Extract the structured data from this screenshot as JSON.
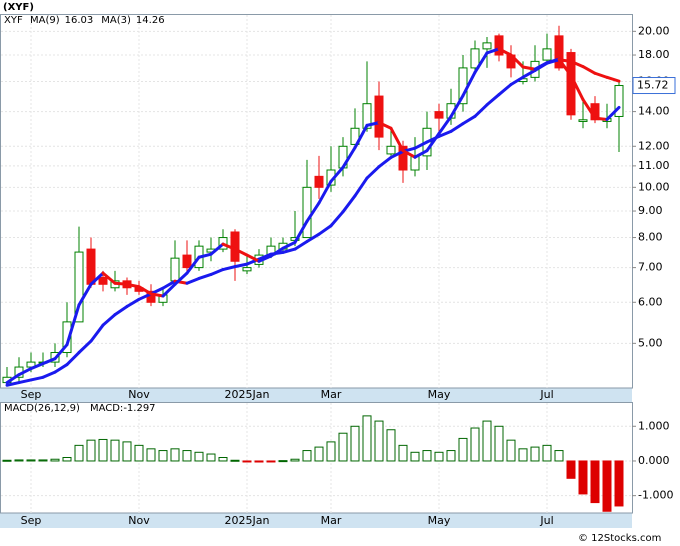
{
  "chart_data": [
    {
      "type": "candlestick",
      "title": "(XYF)",
      "name": "XYF",
      "name_color": "#008000",
      "categories": [
        null,
        null,
        "Sep",
        null,
        null,
        null,
        null,
        null,
        null,
        null,
        null,
        "Nov",
        null,
        null,
        null,
        null,
        null,
        null,
        null,
        null,
        "2025Jan",
        null,
        null,
        null,
        null,
        null,
        null,
        "Mar",
        null,
        null,
        null,
        null,
        null,
        null,
        null,
        null,
        "May",
        null,
        null,
        null,
        null,
        null,
        null,
        null,
        null,
        "Jul",
        null,
        null,
        null,
        null,
        null,
        null
      ],
      "open": [
        4.2,
        4.3,
        4.5,
        4.6,
        4.6,
        4.8,
        5.5,
        7.6,
        6.7,
        6.4,
        6.6,
        6.4,
        6.3,
        6.0,
        6.6,
        7.4,
        7.0,
        7.5,
        7.6,
        8.2,
        6.9,
        7.1,
        7.4,
        7.6,
        7.9,
        8.0,
        10.5,
        10.1,
        10.9,
        12.1,
        13.0,
        15.0,
        11.6,
        12.0,
        10.8,
        11.5,
        14.0,
        13.6,
        14.5,
        17.0,
        18.5,
        19.6,
        18.0,
        16.0,
        16.3,
        17.6,
        19.6,
        18.2,
        13.4,
        14.5,
        13.4,
        13.7
      ],
      "high": [
        4.5,
        4.7,
        4.8,
        4.8,
        5.0,
        6.0,
        8.4,
        8.0,
        6.9,
        6.9,
        6.7,
        6.6,
        6.5,
        6.4,
        7.9,
        7.9,
        7.9,
        8.0,
        8.3,
        8.3,
        7.4,
        7.6,
        8.0,
        8.0,
        9.0,
        11.3,
        11.5,
        12.0,
        12.5,
        14.2,
        17.5,
        16.0,
        13.0,
        12.3,
        12.5,
        14.0,
        14.5,
        15.5,
        18.0,
        19.2,
        19.5,
        19.8,
        18.8,
        17.5,
        18.8,
        19.8,
        20.5,
        18.5,
        14.8,
        15.0,
        14.5,
        16.0
      ],
      "low": [
        4.15,
        4.2,
        4.4,
        4.5,
        4.5,
        4.7,
        5.5,
        6.4,
        6.3,
        6.3,
        6.2,
        6.2,
        5.9,
        5.9,
        6.5,
        6.8,
        6.9,
        7.2,
        7.5,
        6.6,
        6.8,
        7.0,
        7.3,
        7.5,
        7.7,
        8.0,
        9.5,
        9.8,
        10.5,
        11.8,
        12.8,
        11.8,
        11.5,
        10.2,
        10.5,
        10.8,
        12.5,
        13.2,
        14.0,
        16.5,
        17.0,
        17.5,
        16.3,
        15.8,
        16.0,
        17.3,
        16.8,
        13.5,
        13.0,
        13.3,
        13.0,
        11.7
      ],
      "close": [
        4.3,
        4.5,
        4.6,
        4.6,
        4.8,
        5.5,
        7.5,
        6.5,
        6.5,
        6.6,
        6.4,
        6.3,
        6.0,
        6.2,
        7.3,
        7.0,
        7.7,
        7.6,
        8.0,
        7.2,
        7.0,
        7.4,
        7.7,
        7.8,
        8.0,
        10.0,
        10.0,
        10.8,
        12.0,
        13.0,
        14.5,
        12.5,
        12.0,
        10.8,
        11.5,
        13.0,
        13.6,
        14.5,
        17.0,
        18.5,
        19.0,
        18.0,
        17.0,
        16.2,
        17.5,
        18.5,
        17.0,
        13.8,
        13.5,
        13.5,
        13.57,
        15.72
      ],
      "up_color": "#008000",
      "down_color": "#ee1111",
      "series": [
        {
          "name": "MA(9)",
          "color": "#1a1aee",
          "values": [
            4.15,
            4.2,
            4.25,
            4.3,
            4.4,
            4.55,
            4.8,
            5.05,
            5.42,
            5.68,
            5.89,
            6.08,
            6.23,
            6.39,
            6.59,
            6.53,
            6.67,
            6.79,
            6.94,
            7.03,
            7.11,
            7.27,
            7.43,
            7.49,
            7.6,
            7.86,
            8.12,
            8.43,
            8.97,
            9.63,
            10.42,
            10.96,
            11.42,
            11.73,
            11.9,
            12.23,
            12.54,
            12.82,
            13.27,
            13.71,
            14.43,
            15.1,
            15.79,
            16.31,
            16.81,
            17.36,
            17.63,
            17.5,
            17.1,
            16.6,
            16.3,
            16.03
          ]
        },
        {
          "name": "MA(3)",
          "color": "#1a1aee",
          "values": [
            4.2,
            4.35,
            4.47,
            4.57,
            4.67,
            4.97,
            5.93,
            6.5,
            6.83,
            6.53,
            6.5,
            6.43,
            6.23,
            6.17,
            6.5,
            6.83,
            7.33,
            7.43,
            7.77,
            7.6,
            7.4,
            7.2,
            7.37,
            7.63,
            7.83,
            8.6,
            9.33,
            10.27,
            10.93,
            11.93,
            13.17,
            13.33,
            13.0,
            11.77,
            11.43,
            11.77,
            12.7,
            13.7,
            15.03,
            16.67,
            18.17,
            18.5,
            18.0,
            17.07,
            16.9,
            17.4,
            17.67,
            16.43,
            14.77,
            13.6,
            13.52,
            14.26
          ]
        }
      ],
      "falling_color": "#ee1111",
      "log_scale": true,
      "grid": true,
      "ylim": [
        4.1,
        21.6
      ],
      "yticks": [
        {
          "value": 5,
          "label": "5.00"
        },
        {
          "value": 6,
          "label": "6.00"
        },
        {
          "value": 7,
          "label": "7.00"
        },
        {
          "value": 8,
          "label": "8.00"
        },
        {
          "value": 9,
          "label": "9.00"
        },
        {
          "value": 10,
          "label": "10.00"
        },
        {
          "value": 11,
          "label": "11.00"
        },
        {
          "value": 12,
          "label": "12.00"
        },
        {
          "value": 14,
          "label": "14.00"
        },
        {
          "value": 16,
          "label": "16.00"
        },
        {
          "value": 18,
          "label": "18.00"
        },
        {
          "value": 20,
          "label": "20.00"
        }
      ]
    },
    {
      "type": "bar",
      "title": "MACD(26,12,9)",
      "value_name": "MACD:",
      "categories": [
        null,
        null,
        "Sep",
        null,
        null,
        null,
        null,
        null,
        null,
        null,
        null,
        "Nov",
        null,
        null,
        null,
        null,
        null,
        null,
        null,
        null,
        "2025Jan",
        null,
        null,
        null,
        null,
        null,
        null,
        "Mar",
        null,
        null,
        null,
        null,
        null,
        null,
        null,
        null,
        "May",
        null,
        null,
        null,
        null,
        null,
        null,
        null,
        null,
        "Jul",
        null,
        null,
        null,
        null,
        null,
        null
      ],
      "values": [
        0.02,
        0.03,
        0.03,
        0.03,
        0.05,
        0.1,
        0.45,
        0.6,
        0.62,
        0.6,
        0.55,
        0.45,
        0.35,
        0.3,
        0.35,
        0.3,
        0.25,
        0.2,
        0.1,
        0.02,
        -0.01,
        -0.03,
        -0.02,
        0.01,
        0.05,
        0.3,
        0.4,
        0.55,
        0.8,
        1.0,
        1.3,
        1.15,
        0.9,
        0.45,
        0.25,
        0.3,
        0.25,
        0.3,
        0.65,
        0.95,
        1.15,
        1.0,
        0.6,
        0.35,
        0.4,
        0.45,
        0.3,
        -0.5,
        -0.95,
        -1.2,
        -1.45,
        -1.297
      ],
      "positive_color": "#006600",
      "negative_color": "#dd0000",
      "ylim": [
        -1.5,
        1.7
      ],
      "yticks": [
        {
          "value": -1,
          "label": "-1.000"
        },
        {
          "value": 0,
          "label": "0.000"
        },
        {
          "value": 1,
          "label": "1.000"
        }
      ],
      "grid": true
    },
    {
      "footer": "© 12Stocks.com"
    }
  ]
}
